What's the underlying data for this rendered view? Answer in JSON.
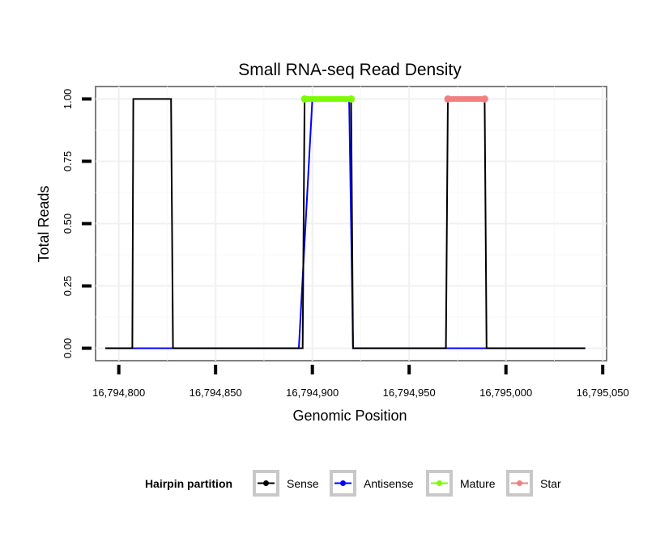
{
  "chart_data": {
    "type": "line",
    "title": "Small RNA-seq Read Density",
    "xlabel": "Genomic Position",
    "ylabel": "Total Reads",
    "xlim": [
      16794788,
      16795052
    ],
    "ylim": [
      -0.05,
      1.05
    ],
    "x_ticks": [
      16794800,
      16794850,
      16794900,
      16794950,
      16795000,
      16795050
    ],
    "x_tick_labels": [
      "16,794,800",
      "16,794,850",
      "16,794,900",
      "16,794,950",
      "16,795,000",
      "16,795,050"
    ],
    "y_ticks": [
      0,
      0.25,
      0.5,
      0.75,
      1
    ],
    "y_tick_labels": [
      "0.00",
      "0.25",
      "0.50",
      "0.75",
      "1.00"
    ],
    "grid": true,
    "legend": {
      "title": "Hairpin partition",
      "position": "bottom",
      "entries": [
        "Sense",
        "Antisense",
        "Mature",
        "Star"
      ]
    },
    "series": [
      {
        "name": "Antisense",
        "color": "#0000ff",
        "style": "line",
        "x": [
          16794793,
          16794893,
          16794900,
          16794919,
          16794921,
          16795041
        ],
        "y": [
          0,
          0,
          1,
          1,
          0,
          0
        ]
      },
      {
        "name": "Sense",
        "color": "#000000",
        "style": "line",
        "x": [
          16794793,
          16794800,
          16794807,
          16794807.5,
          16794827,
          16794828,
          16794895,
          16794896,
          16794920,
          16794921,
          16794969,
          16794970,
          16794989,
          16794990,
          16795041
        ],
        "y": [
          0,
          0,
          0,
          1,
          1,
          0,
          0,
          1,
          1,
          0,
          0,
          1,
          1,
          0,
          0
        ]
      },
      {
        "name": "Mature",
        "color": "#7cfc00",
        "style": "thick",
        "x": [
          16794896,
          16794920
        ],
        "y": [
          1,
          1
        ]
      },
      {
        "name": "Star",
        "color": "#f08080",
        "style": "thick",
        "x": [
          16794970,
          16794989
        ],
        "y": [
          1,
          1
        ]
      }
    ]
  }
}
